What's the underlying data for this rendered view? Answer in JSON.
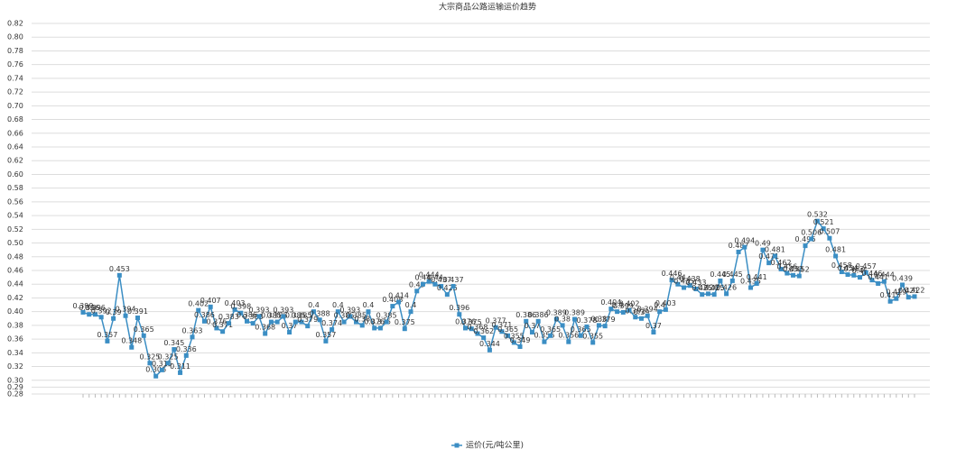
{
  "chart_data": {
    "type": "line",
    "title": "大宗商品公路运输运价趋势",
    "categories": [
      null,
      null,
      null,
      null,
      null,
      null,
      null,
      null,
      null,
      null,
      null,
      null,
      null,
      null,
      null,
      null,
      null,
      null,
      null,
      null,
      null,
      null,
      null,
      null,
      null,
      null,
      null,
      null,
      null,
      null,
      null,
      null,
      null,
      null,
      null,
      null,
      null,
      null,
      null,
      null,
      null,
      null,
      null,
      null,
      null,
      null,
      null,
      null,
      null,
      null,
      null,
      null,
      null,
      null,
      null,
      null,
      null,
      null,
      null,
      null,
      null,
      null,
      null,
      null,
      null,
      null,
      null,
      null,
      null,
      null,
      null,
      null,
      null,
      null,
      null,
      null,
      null,
      null,
      null,
      null,
      null,
      null,
      null,
      null,
      null,
      null,
      null,
      null,
      null,
      null,
      null,
      null,
      null,
      null,
      null,
      null,
      null,
      null,
      null,
      null,
      null,
      null,
      null,
      null,
      null,
      null,
      null,
      null,
      null,
      null,
      null,
      null,
      null,
      null,
      null,
      null,
      null,
      null,
      null,
      null,
      null,
      null,
      null,
      null,
      null,
      null,
      null,
      null,
      null,
      null,
      null,
      null,
      null,
      null,
      null,
      null,
      null,
      null
    ],
    "series": [
      {
        "name": "运价(元/吨公里)",
        "color": "#3b8ec4",
        "values": [
          0.399,
          0.396,
          0.396,
          0.392,
          0.357,
          0.39,
          0.453,
          0.394,
          0.348,
          0.391,
          0.365,
          0.325,
          0.306,
          0.315,
          0.325,
          0.345,
          0.311,
          0.336,
          0.363,
          0.402,
          0.386,
          0.407,
          0.376,
          0.371,
          0.383,
          0.403,
          0.398,
          0.386,
          0.383,
          0.393,
          0.368,
          0.385,
          0.385,
          0.393,
          0.37,
          0.385,
          0.385,
          0.379,
          0.4,
          0.388,
          0.357,
          0.374,
          0.4,
          0.385,
          0.393,
          0.385,
          0.38,
          0.4,
          0.376,
          0.376,
          0.385,
          0.408,
          0.414,
          0.375,
          0.4,
          0.43,
          0.44,
          0.444,
          0.44,
          0.437,
          0.425,
          0.437,
          0.396,
          0.376,
          0.375,
          0.368,
          0.362,
          0.344,
          0.377,
          0.371,
          0.365,
          0.355,
          0.349,
          0.386,
          0.37,
          0.386,
          0.356,
          0.365,
          0.389,
          0.38,
          0.356,
          0.389,
          0.365,
          0.378,
          0.355,
          0.38,
          0.379,
          0.404,
          0.4,
          0.399,
          0.402,
          0.392,
          0.39,
          0.394,
          0.37,
          0.4,
          0.403,
          0.446,
          0.44,
          0.435,
          0.438,
          0.433,
          0.425,
          0.426,
          0.425,
          0.445,
          0.426,
          0.445,
          0.487,
          0.494,
          0.435,
          0.441,
          0.49,
          0.471,
          0.481,
          0.462,
          0.456,
          0.453,
          0.452,
          0.496,
          0.506,
          0.532,
          0.521,
          0.507,
          0.481,
          0.458,
          0.454,
          0.453,
          0.45,
          0.457,
          0.446,
          0.441,
          0.444,
          0.415,
          0.419,
          0.439,
          0.421,
          0.422
        ]
      }
    ],
    "ylim": [
      0.28,
      0.82
    ],
    "yticks": [
      0.28,
      0.29,
      {
        "value": 0.3,
        "label": "0.30"
      },
      0.32,
      0.34,
      0.36,
      0.38,
      {
        "value": 0.4,
        "label": "0.40"
      },
      0.42,
      0.44,
      0.46,
      0.48,
      {
        "value": 0.5,
        "label": "0.50"
      },
      0.52,
      0.54,
      0.56,
      0.58,
      {
        "value": 0.6,
        "label": "0.60"
      },
      0.62,
      0.64,
      0.66,
      0.68,
      {
        "value": 0.7,
        "label": "0.70"
      },
      0.72,
      0.74,
      0.76,
      0.78,
      {
        "value": 0.8,
        "label": "0.80"
      },
      0.82
    ],
    "grid": true,
    "legend": "bottom"
  }
}
